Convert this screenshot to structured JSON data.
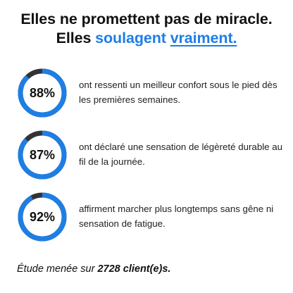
{
  "headline": {
    "line1": "Elles ne promettent pas de miracle.",
    "line2_prefix": "Elles",
    "line2_accent": "soulagent",
    "line2_accent_underlined": "vraiment."
  },
  "colors": {
    "accent": "#1e7ee4",
    "ring_fill": "#1e7ee4",
    "ring_track": "#333333"
  },
  "stats": [
    {
      "percent_label": "88%",
      "value": 88,
      "text": "ont ressenti un meilleur confort sous le pied dès les premières semaines."
    },
    {
      "percent_label": "87%",
      "value": 87,
      "text": "ont déclaré une sensation de légèreté durable au fil de la journée."
    },
    {
      "percent_label": "92%",
      "value": 92,
      "text": "affirment marcher plus longtemps sans gêne ni sensation de fatigue."
    }
  ],
  "footnote": {
    "prefix": "Étude menée sur",
    "count": "2728 client(e)s."
  }
}
